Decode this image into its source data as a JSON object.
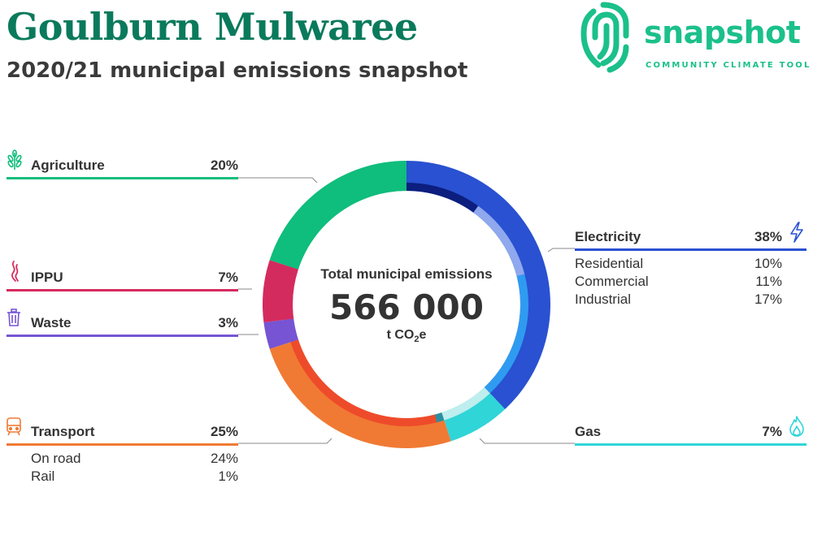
{
  "header": {
    "title": "Goulburn Mulwaree",
    "subtitle": "2020/21 municipal emissions snapshot"
  },
  "logo": {
    "name": "snapshot",
    "tagline": "COMMUNITY CLIMATE TOOL",
    "icon": "snapshot-fingerprint-icon",
    "color": "#1bc08a"
  },
  "center": {
    "label": "Total municipal emissions",
    "value": "566 000",
    "unit_prefix": "t CO",
    "unit_sub": "2",
    "unit_suffix": "e"
  },
  "sections": {
    "agriculture": {
      "label": "Agriculture",
      "pct": "20%",
      "icon": "wheat-icon",
      "color": "#0fbd7c"
    },
    "ippu": {
      "label": "IPPU",
      "pct": "7%",
      "icon": "smoke-icon",
      "color": "#d42b5e"
    },
    "waste": {
      "label": "Waste",
      "pct": "3%",
      "icon": "bin-icon",
      "color": "#7654d3"
    },
    "transport": {
      "label": "Transport",
      "pct": "25%",
      "icon": "train-icon",
      "color": "#f07a33",
      "subs": [
        {
          "label": "On road",
          "pct": "24%"
        },
        {
          "label": "Rail",
          "pct": "1%"
        }
      ]
    },
    "electricity": {
      "label": "Electricity",
      "pct": "38%",
      "icon": "lightning-icon",
      "color": "#2951d1",
      "subs": [
        {
          "label": "Residential",
          "pct": "10%"
        },
        {
          "label": "Commercial",
          "pct": "11%"
        },
        {
          "label": "Industrial",
          "pct": "17%"
        }
      ]
    },
    "gas": {
      "label": "Gas",
      "pct": "7%",
      "icon": "flame-icon",
      "color": "#30d5d8"
    }
  },
  "chart_data": {
    "type": "pie",
    "style": "donut",
    "title": "Total municipal emissions",
    "total": 566000,
    "unit": "t CO2e",
    "outer": [
      {
        "name": "Electricity",
        "value": 38,
        "color": "#2951d1"
      },
      {
        "name": "Gas",
        "value": 7,
        "color": "#30d5d8"
      },
      {
        "name": "Transport",
        "value": 25,
        "color": "#f07a33"
      },
      {
        "name": "Waste",
        "value": 3,
        "color": "#7654d3"
      },
      {
        "name": "IPPU",
        "value": 7,
        "color": "#d42b5e"
      },
      {
        "name": "Agriculture",
        "value": 20,
        "color": "#0fbd7c"
      }
    ],
    "inner": [
      {
        "name": "Residential",
        "parent": "Electricity",
        "value": 10,
        "color": "#0c1e7e"
      },
      {
        "name": "Commercial",
        "parent": "Electricity",
        "value": 11,
        "color": "#8fa8ee"
      },
      {
        "name": "Industrial",
        "parent": "Electricity",
        "value": 17,
        "color": "#2f9bf0"
      },
      {
        "name": "Gas",
        "parent": "Gas",
        "value": 7,
        "color": "#bfeeee"
      },
      {
        "name": "Rail",
        "parent": "Transport",
        "value": 1,
        "color": "#2a8fa0"
      },
      {
        "name": "On road",
        "parent": "Transport",
        "value": 24,
        "color": "#ee4b2b"
      },
      {
        "name": "Waste",
        "parent": "Waste",
        "value": 3,
        "color": "#7654d3"
      },
      {
        "name": "IPPU",
        "parent": "IPPU",
        "value": 7,
        "color": "#d42b5e"
      },
      {
        "name": "Agriculture",
        "parent": "Agriculture",
        "value": 20,
        "color": "#0fbd7c"
      }
    ]
  }
}
